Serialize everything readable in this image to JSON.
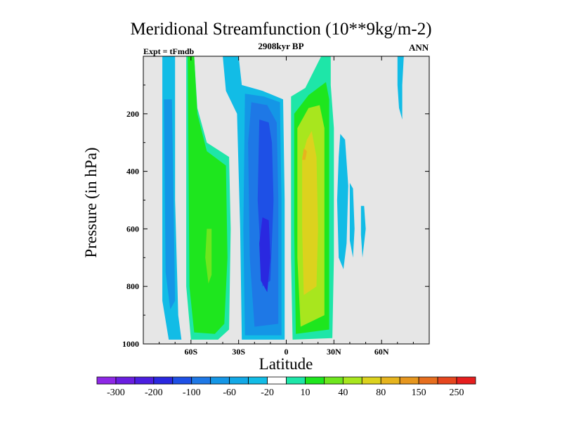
{
  "chart_data": {
    "type": "heatmap",
    "subtype": "filled-contour",
    "title": "Meridional Streamfunction (10**9kg/m-2)",
    "subtitle": "2908kyr BP",
    "left_label": "Expt = tFmdb",
    "right_label": "ANN",
    "xlabel": "Latitude",
    "ylabel": "Pressure (in hPa)",
    "xlim": [
      -90,
      90
    ],
    "ylim": [
      1000,
      0
    ],
    "x_ticks": [
      {
        "value": -60,
        "label": "60S"
      },
      {
        "value": -30,
        "label": "30S"
      },
      {
        "value": 0,
        "label": "0"
      },
      {
        "value": 30,
        "label": "30N"
      },
      {
        "value": 60,
        "label": "60N"
      }
    ],
    "y_ticks": [
      {
        "value": 200,
        "label": "200"
      },
      {
        "value": 400,
        "label": "400"
      },
      {
        "value": 600,
        "label": "600"
      },
      {
        "value": 800,
        "label": "800"
      },
      {
        "value": 1000,
        "label": "1000"
      }
    ],
    "background_color": "#e6e6e6",
    "colorbar": {
      "colors": [
        "#8e28e6",
        "#6a1ee0",
        "#4b1ee0",
        "#2a28e0",
        "#1e50e6",
        "#1e78e6",
        "#1496e6",
        "#12a8e6",
        "#12bce6",
        "#ffffff",
        "#1ee6a8",
        "#1ee61e",
        "#6ee61e",
        "#a8e61e",
        "#dcd21e",
        "#e6b41e",
        "#e6961e",
        "#e66e1e",
        "#e6461e",
        "#e61e1e"
      ],
      "labels": [
        "-300",
        "-200",
        "-100",
        "-60",
        "-20",
        "10",
        "40",
        "80",
        "150",
        "250"
      ]
    },
    "regions": [
      {
        "name": "sh-negative-cell-outer",
        "level": -20,
        "color": "#12bce6",
        "points": [
          [
            -78,
            0
          ],
          [
            -70,
            0
          ],
          [
            -70,
            500
          ],
          [
            -68,
            900
          ],
          [
            -66,
            985
          ],
          [
            -74,
            985
          ],
          [
            -78,
            850
          ]
        ]
      },
      {
        "name": "sh-negative-cell-inner",
        "level": -60,
        "color": "#1496e6",
        "points": [
          [
            -77,
            150
          ],
          [
            -72,
            150
          ],
          [
            -71,
            500
          ],
          [
            -70,
            850
          ],
          [
            -73,
            880
          ],
          [
            -76,
            750
          ]
        ]
      },
      {
        "name": "ferrel-cell-outer",
        "level": 10,
        "color": "#1ee6a8",
        "points": [
          [
            -63,
            0
          ],
          [
            -58,
            0
          ],
          [
            -56,
            180
          ],
          [
            -50,
            300
          ],
          [
            -36,
            350
          ],
          [
            -35,
            600
          ],
          [
            -36,
            950
          ],
          [
            -43,
            985
          ],
          [
            -60,
            985
          ],
          [
            -63,
            800
          ]
        ]
      },
      {
        "name": "ferrel-cell-inner",
        "level": 40,
        "color": "#1ee61e",
        "points": [
          [
            -62,
            0
          ],
          [
            -58,
            0
          ],
          [
            -56,
            200
          ],
          [
            -50,
            330
          ],
          [
            -38,
            380
          ],
          [
            -37,
            700
          ],
          [
            -39,
            930
          ],
          [
            -45,
            965
          ],
          [
            -58,
            960
          ],
          [
            -61,
            800
          ]
        ]
      },
      {
        "name": "ferrel-cell-core",
        "level": 80,
        "color": "#6ee61e",
        "points": [
          [
            -50,
            600
          ],
          [
            -47,
            600
          ],
          [
            -47,
            760
          ],
          [
            -49,
            790
          ],
          [
            -51,
            700
          ]
        ]
      },
      {
        "name": "hadley-south-outer",
        "level": -20,
        "color": "#12bce6",
        "points": [
          [
            -40,
            0
          ],
          [
            -30,
            0
          ],
          [
            -28,
            100
          ],
          [
            -15,
            120
          ],
          [
            -2,
            150
          ],
          [
            -1,
            500
          ],
          [
            -1,
            985
          ],
          [
            -28,
            985
          ],
          [
            -29,
            600
          ],
          [
            -31,
            200
          ],
          [
            -38,
            120
          ]
        ]
      },
      {
        "name": "hadley-south-level2",
        "level": -60,
        "color": "#1496e6",
        "points": [
          [
            -26,
            130
          ],
          [
            -14,
            140
          ],
          [
            -4,
            160
          ],
          [
            -3,
            500
          ],
          [
            -3,
            970
          ],
          [
            -26,
            970
          ],
          [
            -27,
            600
          ]
        ]
      },
      {
        "name": "hadley-south-level3",
        "level": -100,
        "color": "#1e78e6",
        "points": [
          [
            -22,
            160
          ],
          [
            -12,
            170
          ],
          [
            -6,
            230
          ],
          [
            -5,
            500
          ],
          [
            -5,
            930
          ],
          [
            -20,
            940
          ],
          [
            -23,
            700
          ],
          [
            -24,
            300
          ]
        ]
      },
      {
        "name": "hadley-south-level4",
        "level": -200,
        "color": "#1e50e6",
        "points": [
          [
            -17,
            220
          ],
          [
            -11,
            230
          ],
          [
            -9,
            300
          ],
          [
            -8,
            500
          ],
          [
            -10,
            780
          ],
          [
            -15,
            800
          ],
          [
            -18,
            500
          ]
        ]
      },
      {
        "name": "hadley-south-core",
        "level": -300,
        "color": "#2a28e0",
        "points": [
          [
            -15,
            560
          ],
          [
            -11,
            570
          ],
          [
            -10,
            700
          ],
          [
            -12,
            820
          ],
          [
            -16,
            780
          ],
          [
            -17,
            650
          ]
        ]
      },
      {
        "name": "hadley-north-outer",
        "level": 10,
        "color": "#1ee6a8",
        "points": [
          [
            22,
            0
          ],
          [
            28,
            0
          ],
          [
            28,
            100
          ],
          [
            30,
            250
          ],
          [
            30,
            700
          ],
          [
            29,
            980
          ],
          [
            4,
            985
          ],
          [
            3,
            700
          ],
          [
            3,
            140
          ],
          [
            12,
            110
          ]
        ]
      },
      {
        "name": "hadley-north-level2",
        "level": 40,
        "color": "#1ee61e",
        "points": [
          [
            25,
            90
          ],
          [
            27,
            150
          ],
          [
            27,
            500
          ],
          [
            27,
            950
          ],
          [
            6,
            965
          ],
          [
            5,
            600
          ],
          [
            5,
            200
          ],
          [
            14,
            135
          ]
        ]
      },
      {
        "name": "hadley-north-level3",
        "level": 80,
        "color": "#a8e61e",
        "points": [
          [
            21,
            170
          ],
          [
            24,
            250
          ],
          [
            24,
            500
          ],
          [
            24,
            900
          ],
          [
            9,
            940
          ],
          [
            7,
            700
          ],
          [
            7,
            250
          ],
          [
            14,
            180
          ]
        ]
      },
      {
        "name": "hadley-north-level4",
        "level": 150,
        "color": "#dcd21e",
        "points": [
          [
            16,
            260
          ],
          [
            19,
            350
          ],
          [
            20,
            600
          ],
          [
            19,
            800
          ],
          [
            11,
            830
          ],
          [
            10,
            600
          ],
          [
            10,
            350
          ],
          [
            13,
            290
          ]
        ]
      },
      {
        "name": "hadley-north-core",
        "level": 250,
        "color": "#e6b41e",
        "points": [
          [
            11,
            320
          ],
          [
            13,
            330
          ],
          [
            12,
            360
          ],
          [
            10,
            360
          ]
        ]
      },
      {
        "name": "nh-negative-blob-a",
        "level": -20,
        "color": "#12bce6",
        "points": [
          [
            34,
            270
          ],
          [
            37,
            290
          ],
          [
            39,
            450
          ],
          [
            38,
            650
          ],
          [
            36,
            740
          ],
          [
            33,
            700
          ],
          [
            32,
            500
          ],
          [
            33,
            350
          ]
        ]
      },
      {
        "name": "nh-negative-blob-b",
        "level": -20,
        "color": "#12bce6",
        "points": [
          [
            40,
            440
          ],
          [
            42,
            460
          ],
          [
            43,
            600
          ],
          [
            42,
            700
          ],
          [
            40,
            640
          ]
        ]
      },
      {
        "name": "nh-negative-blob-c",
        "level": -20,
        "color": "#12bce6",
        "points": [
          [
            47,
            520
          ],
          [
            49,
            520
          ],
          [
            50,
            600
          ],
          [
            48,
            700
          ],
          [
            47,
            620
          ]
        ]
      },
      {
        "name": "nh-polar-sliver",
        "level": -20,
        "color": "#12bce6",
        "points": [
          [
            70,
            0
          ],
          [
            74,
            0
          ],
          [
            73,
            100
          ],
          [
            73,
            220
          ],
          [
            71,
            180
          ],
          [
            70,
            100
          ]
        ]
      }
    ]
  }
}
